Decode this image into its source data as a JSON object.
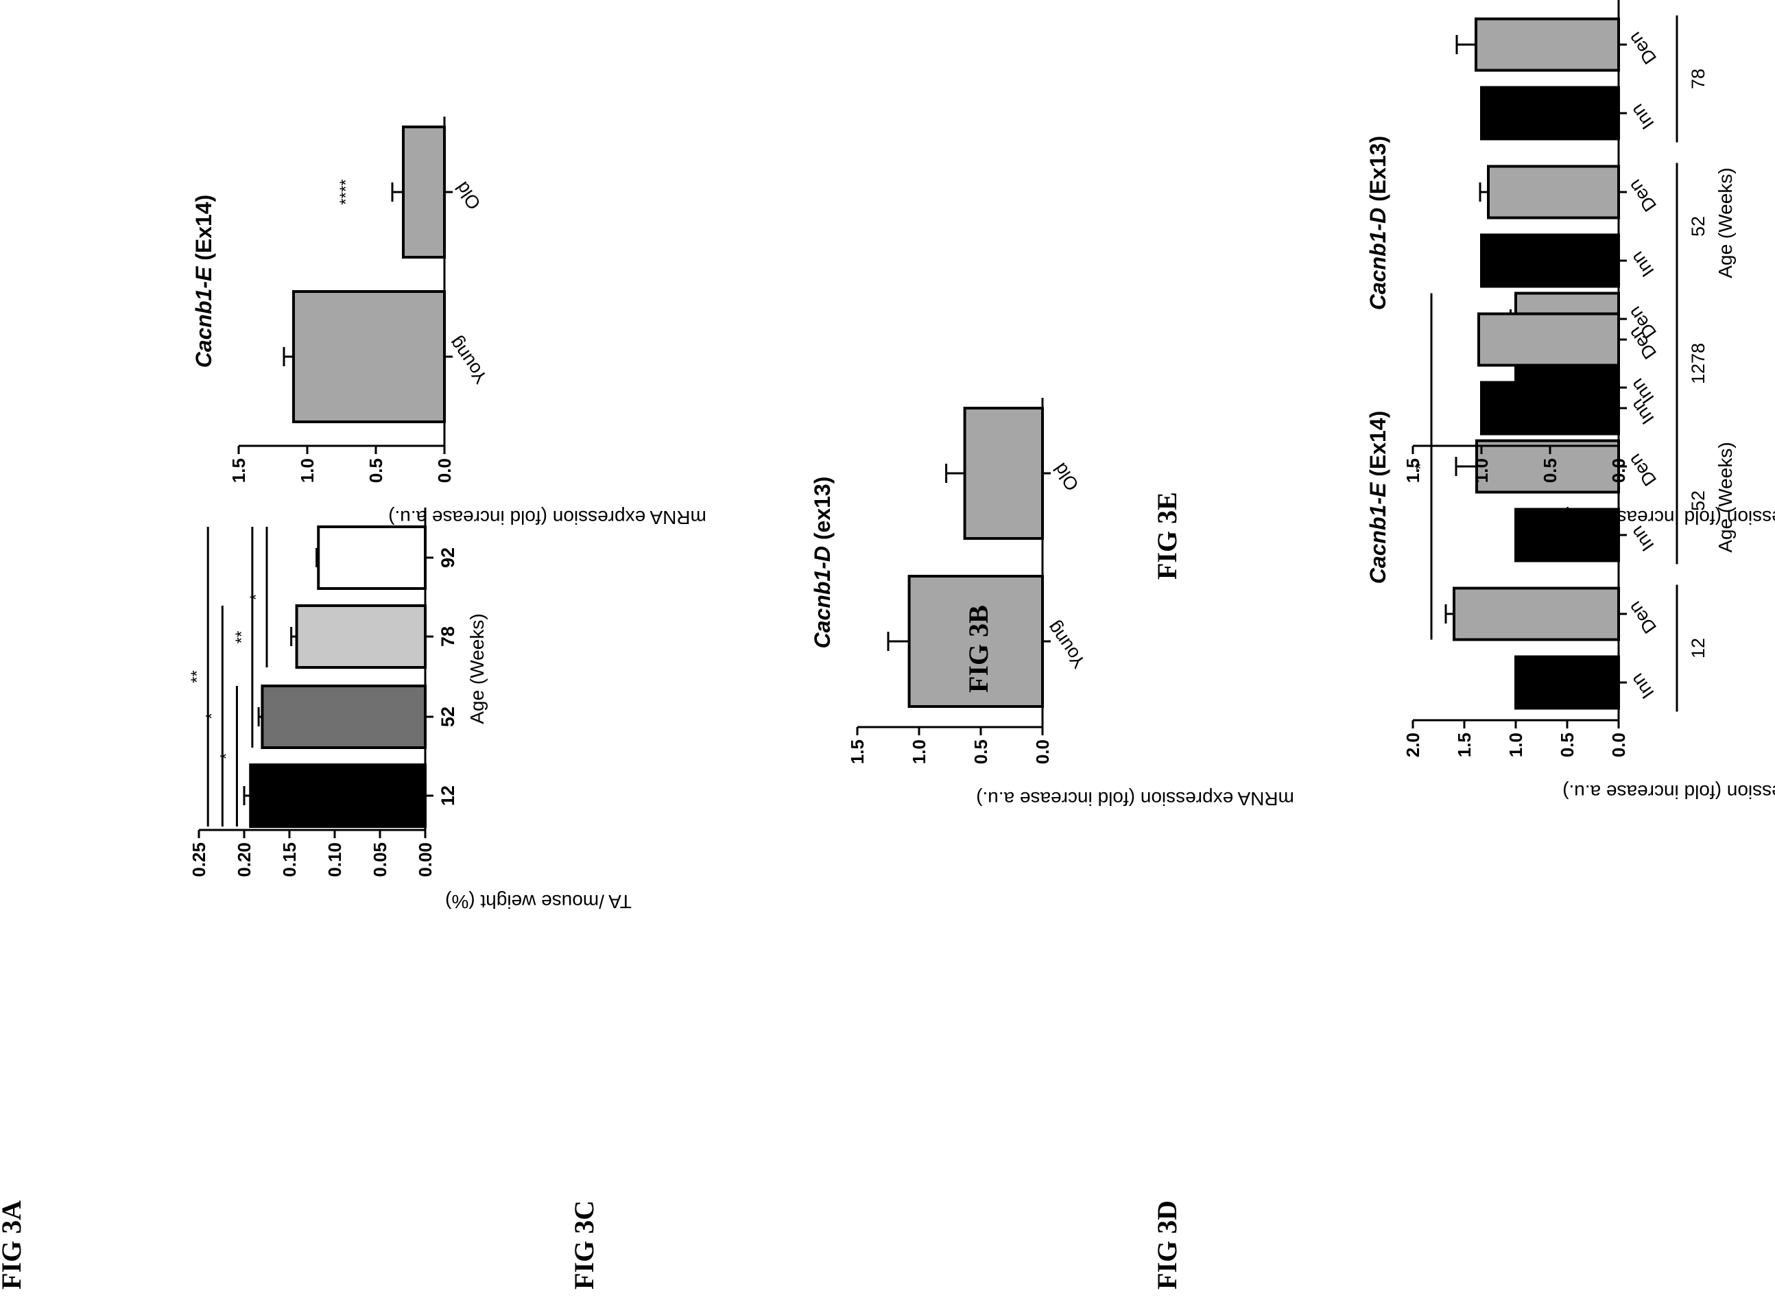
{
  "page": {
    "background": "#ffffff",
    "ink": "#000000"
  },
  "panels": [
    {
      "id": "3A",
      "label": "FIG 3A"
    },
    {
      "id": "3B",
      "label": "FIG 3B"
    },
    {
      "id": "3C",
      "label": "FIG 3C"
    },
    {
      "id": "3D",
      "label": "FIG 3D"
    },
    {
      "id": "3E",
      "label": "FIG 3E"
    }
  ],
  "chart_data": [
    {
      "panel": "3A",
      "type": "bar",
      "title": "",
      "ylabel": "TA /mouse weight (%)",
      "xlabel": "Age (Weeks)",
      "ylim": [
        0,
        0.25
      ],
      "yticks": [
        "0.00",
        "0.05",
        "0.10",
        "0.15",
        "0.20",
        "0.25"
      ],
      "categories": [
        "12",
        "52",
        "78",
        "92"
      ],
      "values": [
        0.193,
        0.18,
        0.142,
        0.118
      ],
      "errors": [
        0.007,
        0.004,
        0.006,
        0.002
      ],
      "fills": [
        "#000000",
        "#707070",
        "#c8c8c8",
        "#ffffff"
      ],
      "significance": [
        {
          "from": "12",
          "to": "92",
          "y": 0.24,
          "label": "**"
        },
        {
          "from": "12",
          "to": "78",
          "y": 0.224,
          "label": "*"
        },
        {
          "from": "12",
          "to": "52",
          "y": 0.208,
          "label": "*"
        },
        {
          "from": "52",
          "to": "92",
          "y": 0.191,
          "label": "**"
        },
        {
          "from": "78",
          "to": "92",
          "y": 0.175,
          "label": "*"
        }
      ]
    },
    {
      "panel": "3B",
      "type": "bar",
      "title_gene": "Cacnb1-E",
      "title_rest": " (Ex14)",
      "ylabel": "mRNA expression (fold increase a.u.)",
      "xlabel": "",
      "ylim": [
        0,
        1.5
      ],
      "yticks": [
        "0.0",
        "0.5",
        "1.0",
        "1.5"
      ],
      "categories": [
        "Young",
        "Old"
      ],
      "values": [
        1.1,
        0.3
      ],
      "errors": [
        0.07,
        0.08
      ],
      "fills": [
        "#a6a6a6",
        "#a6a6a6"
      ],
      "bar_annotations": [
        {
          "category": "Old",
          "label": "****"
        }
      ]
    },
    {
      "panel": "3C",
      "type": "bar",
      "title_gene": "Cacnb1-D",
      "title_rest": " (ex13)",
      "ylabel": "mRNA expression (fold increase a.u.)",
      "xlabel": "",
      "ylim": [
        0,
        1.5
      ],
      "yticks": [
        "0.0",
        "0.5",
        "1.0",
        "1.5"
      ],
      "categories": [
        "Young",
        "Old"
      ],
      "values": [
        1.08,
        0.63
      ],
      "errors": [
        0.17,
        0.15
      ],
      "fills": [
        "#a6a6a6",
        "#a6a6a6"
      ]
    },
    {
      "panel": "3D",
      "type": "bar",
      "title_gene": "Cacnb1-E",
      "title_rest": " (Ex14)",
      "ylabel": "mRNA expression (fold increase a.u.)",
      "xlabel": "Age (Weeks)",
      "ylim": [
        0,
        2.0
      ],
      "yticks": [
        "0.0",
        "0.5",
        "1.0",
        "1.5",
        "2.0"
      ],
      "categories": [
        "Inn",
        "Den",
        "Inn",
        "Den",
        "Inn",
        "Den"
      ],
      "groups": [
        "12",
        "52",
        "78"
      ],
      "values": [
        1.0,
        1.6,
        1.0,
        1.38,
        1.0,
        1.0
      ],
      "errors": [
        0,
        0.08,
        0,
        0.2,
        0,
        0.05
      ],
      "fills": [
        "#000000",
        "#a6a6a6",
        "#000000",
        "#a6a6a6",
        "#000000",
        "#a6a6a6"
      ],
      "significance": [
        {
          "from": 1,
          "to": 5,
          "y": 1.82,
          "label": "*"
        }
      ]
    },
    {
      "panel": "3E",
      "type": "bar",
      "title_gene": "Cacnb1-D",
      "title_rest": " (Ex13)",
      "ylabel": "mRNA expression (fold increase a.u.)",
      "xlabel": "Age (Weeks)",
      "ylim": [
        0,
        1.5
      ],
      "yticks": [
        "0.0",
        "0.5",
        "1.0",
        "1.5"
      ],
      "categories": [
        "Inn",
        "Den",
        "Inn",
        "Den",
        "Inn",
        "Den"
      ],
      "groups": [
        "12",
        "52",
        "78"
      ],
      "values": [
        1.0,
        1.02,
        1.0,
        0.95,
        1.0,
        1.04
      ],
      "errors": [
        0,
        0,
        0,
        0.06,
        0,
        0.14
      ],
      "fills": [
        "#000000",
        "#a6a6a6",
        "#000000",
        "#a6a6a6",
        "#000000",
        "#a6a6a6"
      ]
    }
  ]
}
